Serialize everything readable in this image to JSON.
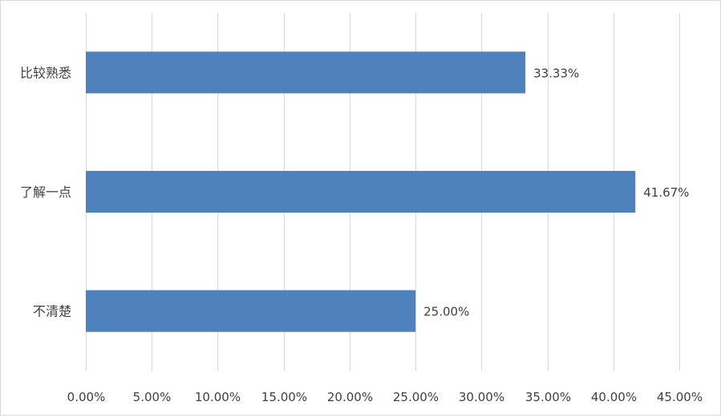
{
  "chart_data": {
    "type": "bar",
    "orientation": "horizontal",
    "categories": [
      "比较熟悉",
      "了解一点",
      "不清楚"
    ],
    "values": [
      33.33,
      41.67,
      25.0
    ],
    "data_labels": [
      "33.33%",
      "41.67%",
      "25.00%"
    ],
    "x_ticks": [
      "0.00%",
      "5.00%",
      "10.00%",
      "15.00%",
      "20.00%",
      "25.00%",
      "30.00%",
      "35.00%",
      "40.00%",
      "45.00%"
    ],
    "xlim": [
      0,
      45
    ],
    "grid": true,
    "legend": "none",
    "colors": {
      "bar": "#4f81bd",
      "grid": "#d9d9d9",
      "text": "#404040"
    }
  }
}
